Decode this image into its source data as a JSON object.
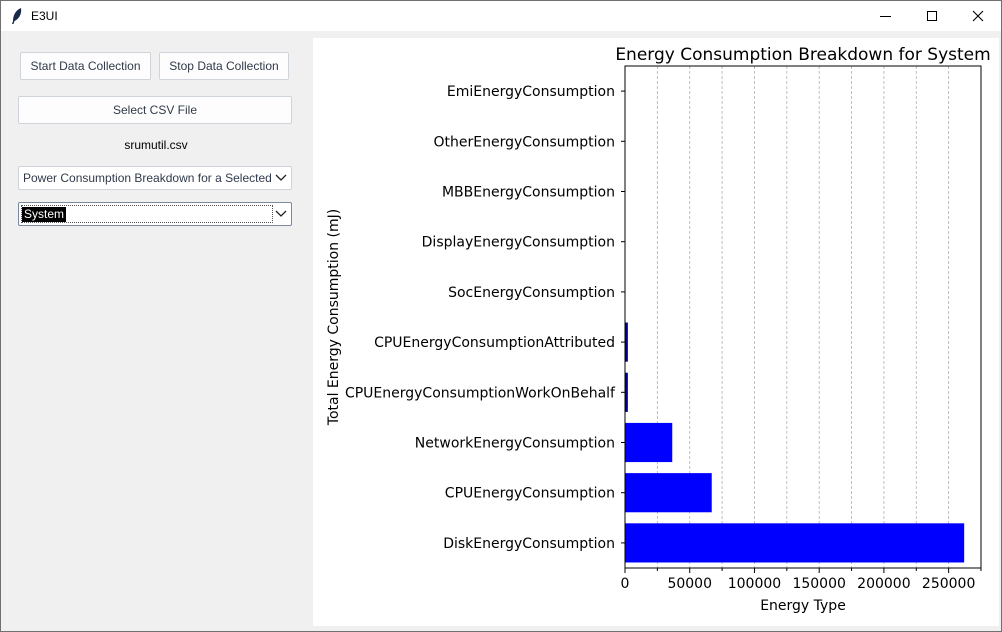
{
  "window": {
    "title": "E3UI",
    "icon": "feather-icon"
  },
  "controls": {
    "start_label": "Start Data Collection",
    "stop_label": "Stop Data Collection",
    "select_csv_label": "Select CSV File",
    "file_name": "srumutil.csv",
    "view_select_value": "Power Consumption Breakdown for a Selected Application",
    "app_select_value": "System"
  },
  "chart_data": {
    "type": "bar",
    "orientation": "horizontal",
    "title": "Energy Consumption Breakdown for System",
    "xlabel": "Energy Type",
    "ylabel": "Total Energy Consumption (mJ)",
    "categories": [
      "DiskEnergyConsumption",
      "CPUEnergyConsumption",
      "NetworkEnergyConsumption",
      "CPUEnergyConsumptionWorkOnBehalf",
      "CPUEnergyConsumptionAttributed",
      "SocEnergyConsumption",
      "DisplayEnergyConsumption",
      "MBBEnergyConsumption",
      "OtherEnergyConsumption",
      "EmiEnergyConsumption"
    ],
    "values": [
      262000,
      67000,
      36500,
      2200,
      2200,
      0,
      0,
      0,
      0,
      0
    ],
    "xlim": [
      0,
      275000
    ],
    "xticks": [
      0,
      50000,
      100000,
      150000,
      200000,
      250000
    ],
    "xtick_labels": [
      "0",
      "50000",
      "100000",
      "150000",
      "200000",
      "250000"
    ],
    "grid": "x-dashed",
    "bar_color": "#0000ff",
    "small_bar_color": "#00008b"
  }
}
